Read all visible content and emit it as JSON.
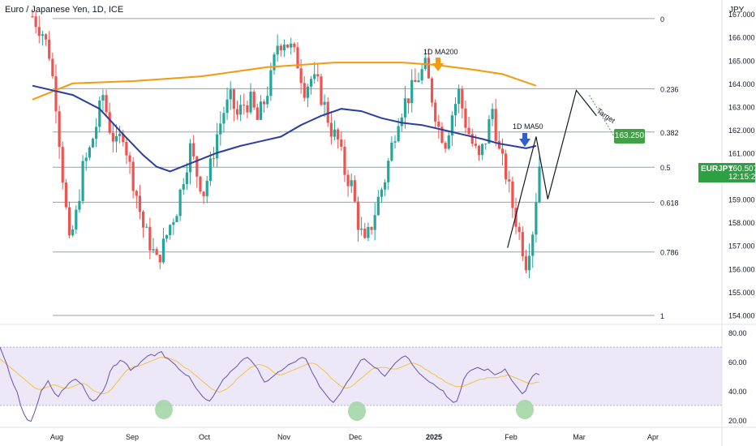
{
  "title": "Euro / Japanese Yen, 1D, ICE",
  "currency": "JPY",
  "symbol": "EURJPY",
  "last_price": "160.507",
  "countdown": "12:15:25",
  "target_label": "163.250",
  "annotations": {
    "ma200": "1D MA200",
    "ma50": "1D MA50",
    "target": "Target"
  },
  "colors": {
    "up": "#26a69a",
    "down": "#ef5350",
    "ma50": "#2c3e9e",
    "ma200": "#f59a0c",
    "rsi": "#6a4fb0",
    "rsi_ma": "#f5c242",
    "rsi_band": "#ece8f8",
    "oversold_marker": "#a5d6a7",
    "arrow_ma200": "#f59a0c",
    "arrow_ma50": "#2f5fd0",
    "last_price_bg": "#2ea043",
    "target_bg": "#43a047"
  },
  "chart_data": [
    {
      "type": "candlestick",
      "title": "Euro / Japanese Yen, 1D, ICE",
      "y_axis": {
        "ticks": [
          "167.000",
          "166.000",
          "165.000",
          "164.000",
          "163.000",
          "162.000",
          "161.000",
          "160.000",
          "159.000",
          "158.000",
          "157.000",
          "156.000",
          "155.000",
          "154.000"
        ],
        "range": [
          153.7,
          167.6
        ]
      },
      "x_axis": {
        "ticks": [
          "Aug",
          "Sep",
          "Oct",
          "Nov",
          "Dec",
          "2025",
          "Feb",
          "Mar",
          "Apr"
        ]
      },
      "fib_levels": [
        {
          "label": "0",
          "price": 166.8
        },
        {
          "label": "0.236",
          "price": 163.77
        },
        {
          "label": "0.382",
          "price": 161.9
        },
        {
          "label": "0.5",
          "price": 160.38
        },
        {
          "label": "0.618",
          "price": 158.87
        },
        {
          "label": "0.786",
          "price": 156.72
        },
        {
          "label": "1",
          "price": 153.98
        }
      ],
      "ohlc_close_path": [
        [
          0,
          166.9
        ],
        [
          6,
          166.2
        ],
        [
          10,
          165.3
        ],
        [
          14,
          163.2
        ],
        [
          18,
          160.0
        ],
        [
          22,
          157.0
        ],
        [
          26,
          158.3
        ],
        [
          30,
          160.3
        ],
        [
          34,
          161.1
        ],
        [
          38,
          162.2
        ],
        [
          42,
          163.5
        ],
        [
          46,
          162.1
        ],
        [
          50,
          161.3
        ],
        [
          54,
          161.9
        ],
        [
          58,
          160.4
        ],
        [
          62,
          159.2
        ],
        [
          66,
          157.8
        ],
        [
          70,
          157.1
        ],
        [
          74,
          156.3
        ],
        [
          78,
          157.0
        ],
        [
          82,
          157.9
        ],
        [
          86,
          158.6
        ],
        [
          90,
          160.0
        ],
        [
          94,
          161.2
        ],
        [
          98,
          160.1
        ],
        [
          102,
          159.3
        ],
        [
          106,
          160.4
        ],
        [
          110,
          161.8
        ],
        [
          114,
          162.8
        ],
        [
          118,
          163.3
        ],
        [
          122,
          162.6
        ],
        [
          126,
          163.1
        ],
        [
          130,
          163.2
        ],
        [
          134,
          162.4
        ],
        [
          138,
          163.2
        ],
        [
          142,
          164.2
        ],
        [
          146,
          165.7
        ],
        [
          150,
          165.9
        ],
        [
          154,
          165.5
        ],
        [
          158,
          164.9
        ],
        [
          162,
          163.8
        ],
        [
          166,
          164.2
        ],
        [
          170,
          163.9
        ],
        [
          174,
          163.0
        ],
        [
          178,
          162.0
        ],
        [
          182,
          161.5
        ],
        [
          186,
          160.2
        ],
        [
          190,
          159.6
        ],
        [
          194,
          158.0
        ],
        [
          198,
          157.0
        ],
        [
          202,
          157.9
        ],
        [
          206,
          159.0
        ],
        [
          210,
          159.9
        ],
        [
          214,
          161.3
        ],
        [
          218,
          162.6
        ],
        [
          222,
          163.2
        ],
        [
          226,
          163.7
        ],
        [
          230,
          164.3
        ],
        [
          234,
          164.7
        ],
        [
          238,
          163.4
        ],
        [
          242,
          162.1
        ],
        [
          246,
          161.5
        ],
        [
          250,
          162.7
        ],
        [
          254,
          163.6
        ],
        [
          258,
          162.3
        ],
        [
          262,
          161.4
        ],
        [
          266,
          160.7
        ],
        [
          270,
          161.6
        ],
        [
          274,
          162.9
        ],
        [
          278,
          161.0
        ],
        [
          282,
          160.1
        ],
        [
          286,
          158.7
        ],
        [
          290,
          157.5
        ],
        [
          294,
          156.3
        ],
        [
          298,
          157.7
        ],
        [
          302,
          160.5
        ]
      ],
      "ma50_path": [
        [
          0,
          163.9
        ],
        [
          24,
          163.5
        ],
        [
          40,
          162.9
        ],
        [
          54,
          161.8
        ],
        [
          66,
          160.9
        ],
        [
          74,
          160.4
        ],
        [
          82,
          160.2
        ],
        [
          96,
          160.6
        ],
        [
          110,
          161.0
        ],
        [
          124,
          161.3
        ],
        [
          136,
          161.5
        ],
        [
          148,
          161.7
        ],
        [
          160,
          162.2
        ],
        [
          172,
          162.6
        ],
        [
          184,
          162.9
        ],
        [
          196,
          162.8
        ],
        [
          208,
          162.5
        ],
        [
          220,
          162.3
        ],
        [
          232,
          162.2
        ],
        [
          244,
          162.0
        ],
        [
          256,
          161.8
        ],
        [
          268,
          161.6
        ],
        [
          278,
          161.4
        ],
        [
          286,
          161.3
        ],
        [
          294,
          161.2
        ],
        [
          300,
          161.3
        ]
      ],
      "ma200_path": [
        [
          0,
          163.3
        ],
        [
          24,
          164.0
        ],
        [
          60,
          164.1
        ],
        [
          100,
          164.3
        ],
        [
          140,
          164.7
        ],
        [
          180,
          164.9
        ],
        [
          220,
          164.9
        ],
        [
          240,
          164.8
        ],
        [
          262,
          164.6
        ],
        [
          280,
          164.4
        ],
        [
          300,
          163.9
        ]
      ],
      "projection_path": [
        [
          283,
          156.9
        ],
        [
          300,
          161.7
        ],
        [
          307,
          159.0
        ],
        [
          324,
          163.7
        ],
        [
          336,
          162.6
        ]
      ],
      "rsi": {
        "ticks": [
          "80.00",
          "60.00",
          "40.00",
          "20.00"
        ],
        "range": [
          16,
          84
        ],
        "band": [
          30,
          70
        ],
        "values": [
          70,
          64,
          58,
          50,
          44,
          39,
          30,
          24,
          20,
          19,
          25,
          32,
          40,
          43,
          47,
          42,
          38,
          36,
          40,
          42,
          45,
          47,
          48,
          46,
          44,
          39,
          35,
          33,
          34,
          37,
          40,
          45,
          53,
          57,
          58,
          61,
          60,
          58,
          54,
          56,
          57,
          60,
          62,
          64,
          65,
          64,
          66,
          67,
          63,
          62,
          60,
          58,
          55,
          53,
          51,
          50,
          46,
          42,
          39,
          36,
          34,
          33,
          36,
          40,
          44,
          48,
          50,
          53,
          55,
          57,
          60,
          62,
          63,
          61,
          58,
          55,
          50,
          46,
          47,
          49,
          51,
          53,
          54,
          56,
          58,
          59,
          60,
          62,
          63,
          62,
          57,
          52,
          48,
          43,
          40,
          37,
          34,
          32,
          35,
          38,
          42,
          46,
          49,
          53,
          57,
          61,
          62,
          60,
          58,
          56,
          55,
          52,
          50,
          53,
          56,
          59,
          61,
          63,
          64,
          62,
          58,
          55,
          52,
          50,
          48,
          46,
          45,
          43,
          41,
          40,
          36,
          34,
          32,
          33,
          40,
          48,
          52,
          54,
          55,
          56,
          55,
          54,
          55,
          53,
          51,
          52,
          53,
          55,
          51,
          47,
          44,
          41,
          38,
          40,
          46,
          50,
          52,
          51
        ],
        "ma_values": [
          62,
          60,
          58,
          56,
          54,
          52,
          50,
          48,
          46,
          44,
          42,
          41,
          41,
          42,
          43,
          44,
          44,
          43,
          42,
          42,
          42,
          43,
          44,
          45,
          45,
          44,
          42,
          40,
          39,
          38,
          38,
          39,
          41,
          44,
          47,
          50,
          53,
          55,
          56,
          57,
          57,
          58,
          59,
          60,
          61,
          62,
          63,
          63,
          63,
          62,
          61,
          60,
          58,
          56,
          55,
          53,
          51,
          49,
          47,
          45,
          43,
          41,
          40,
          39,
          40,
          41,
          43,
          45,
          48,
          50,
          52,
          54,
          56,
          57,
          58,
          58,
          57,
          56,
          54,
          52,
          51,
          51,
          52,
          53,
          54,
          55,
          56,
          57,
          58,
          59,
          59,
          58,
          56,
          54,
          52,
          49,
          47,
          45,
          43,
          42,
          42,
          43,
          45,
          47,
          49,
          51,
          53,
          55,
          56,
          56,
          56,
          56,
          55,
          55,
          55,
          56,
          57,
          58,
          59,
          59,
          58,
          57,
          55,
          54,
          52,
          51,
          49,
          48,
          46,
          45,
          44,
          43,
          43,
          43,
          44,
          45,
          46,
          47,
          48,
          48,
          49,
          49,
          49,
          49,
          50,
          50,
          51,
          50,
          49,
          48,
          47,
          46,
          45,
          45,
          46,
          46
        ]
      }
    }
  ]
}
